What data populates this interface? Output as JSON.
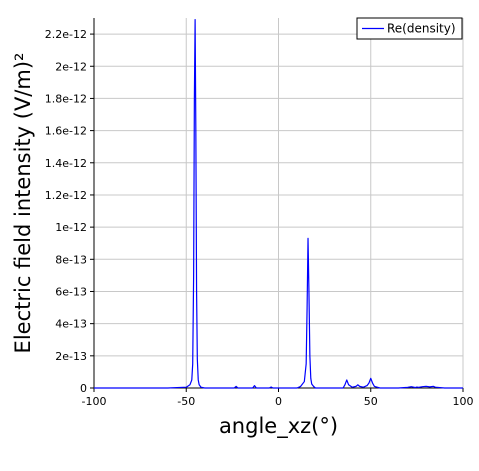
{
  "chart_data": {
    "type": "line",
    "title": "",
    "xlabel": "angle_xz(°)",
    "ylabel": "Electric field intensity (V/m)²",
    "xlim": [
      -100,
      100
    ],
    "ylim": [
      0,
      2.3e-12
    ],
    "x_ticks": [
      -100,
      -50,
      0,
      50,
      100
    ],
    "x_tick_labels": [
      "-100",
      "-50",
      "0",
      "50",
      "100"
    ],
    "y_ticks": [
      0,
      2e-13,
      4e-13,
      6e-13,
      8e-13,
      1e-12,
      1.2e-12,
      1.4e-12,
      1.6e-12,
      1.8e-12,
      2e-12,
      2.2e-12
    ],
    "y_tick_labels": [
      "0",
      "2e-13",
      "4e-13",
      "6e-13",
      "8e-13",
      "1e-12",
      "1.2e-12",
      "1.4e-12",
      "1.6e-12",
      "1.8e-12",
      "2e-12",
      "2.2e-12"
    ],
    "grid": true,
    "legend_position": "top-right",
    "series_color": "#0000ff",
    "series": [
      {
        "name": "Re(density)",
        "x": [
          -100,
          -60,
          -50,
          -48,
          -47,
          -46.5,
          -46,
          -45.6,
          -45.2,
          -44.8,
          -44.4,
          -44,
          -43.5,
          -43,
          -42,
          -40,
          -35,
          -30,
          -24,
          -23,
          -22,
          -18,
          -14,
          -13,
          -12,
          -8,
          -5,
          -4,
          -3,
          0,
          5,
          10,
          12,
          14,
          15,
          15.5,
          16,
          16.5,
          17,
          17.5,
          18,
          19,
          20,
          22,
          30,
          35,
          36,
          37,
          38,
          40,
          42,
          43,
          44,
          46,
          48,
          49,
          50,
          51,
          52,
          55,
          60,
          65,
          70,
          72,
          74,
          75,
          76,
          78,
          80,
          82,
          84,
          85,
          90,
          100
        ],
        "y": [
          0,
          0,
          5e-15,
          2e-14,
          5e-14,
          1.5e-13,
          7e-13,
          1.8e-12,
          2.29e-12,
          1.6e-12,
          6e-13,
          1.8e-13,
          5e-14,
          2e-14,
          5e-15,
          0,
          0,
          0,
          0,
          1e-14,
          0,
          0,
          0,
          1.5e-14,
          0,
          0,
          0,
          6e-15,
          0,
          0,
          0,
          0,
          1e-14,
          4e-14,
          1.5e-13,
          5e-13,
          9.3e-13,
          6e-13,
          2e-13,
          6e-14,
          2.5e-14,
          1e-14,
          0,
          0,
          0,
          0,
          2e-14,
          5e-14,
          2e-14,
          5e-15,
          1e-14,
          2e-14,
          1e-14,
          5e-15,
          1.5e-14,
          3e-14,
          6e-14,
          3e-14,
          1e-14,
          0,
          0,
          0,
          4e-15,
          8e-15,
          3e-15,
          6e-15,
          4e-15,
          8e-15,
          1e-14,
          7e-15,
          1e-14,
          5e-15,
          0,
          0
        ]
      }
    ]
  }
}
